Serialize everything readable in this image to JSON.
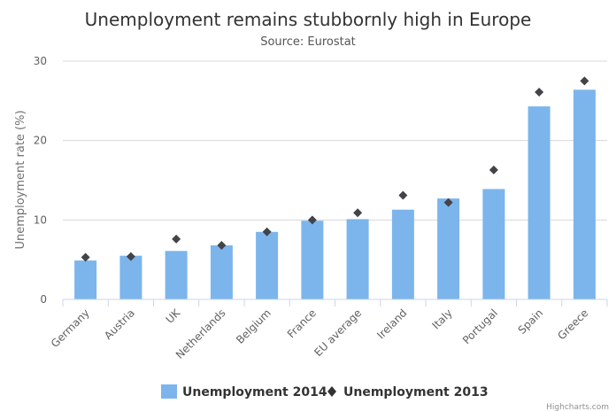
{
  "chart_data": {
    "type": "bar",
    "title": "Unemployment remains stubbornly high in Europe",
    "subtitle": "Source: Eurostat",
    "ylabel": "Unemployment rate (%)",
    "xlabel": "",
    "ylim": [
      0,
      30
    ],
    "yticks": [
      0,
      10,
      20,
      30
    ],
    "categories": [
      "Germany",
      "Austria",
      "UK",
      "Netherlands",
      "Belgium",
      "France",
      "EU average",
      "Ireland",
      "Italy",
      "Portugal",
      "Spain",
      "Greece"
    ],
    "series": [
      {
        "name": "Unemployment 2014",
        "type": "bar",
        "color": "#7cb5ec",
        "values": [
          4.9,
          5.5,
          6.1,
          6.8,
          8.5,
          9.9,
          10.1,
          11.3,
          12.7,
          13.9,
          24.3,
          26.4
        ]
      },
      {
        "name": "Unemployment 2013",
        "type": "scatter",
        "color": "#434348",
        "values": [
          5.3,
          5.4,
          7.6,
          6.8,
          8.5,
          10.0,
          10.9,
          13.1,
          12.2,
          16.3,
          26.1,
          27.5
        ]
      }
    ],
    "legend_position": "bottom-center",
    "credits": "Highcharts.com"
  }
}
